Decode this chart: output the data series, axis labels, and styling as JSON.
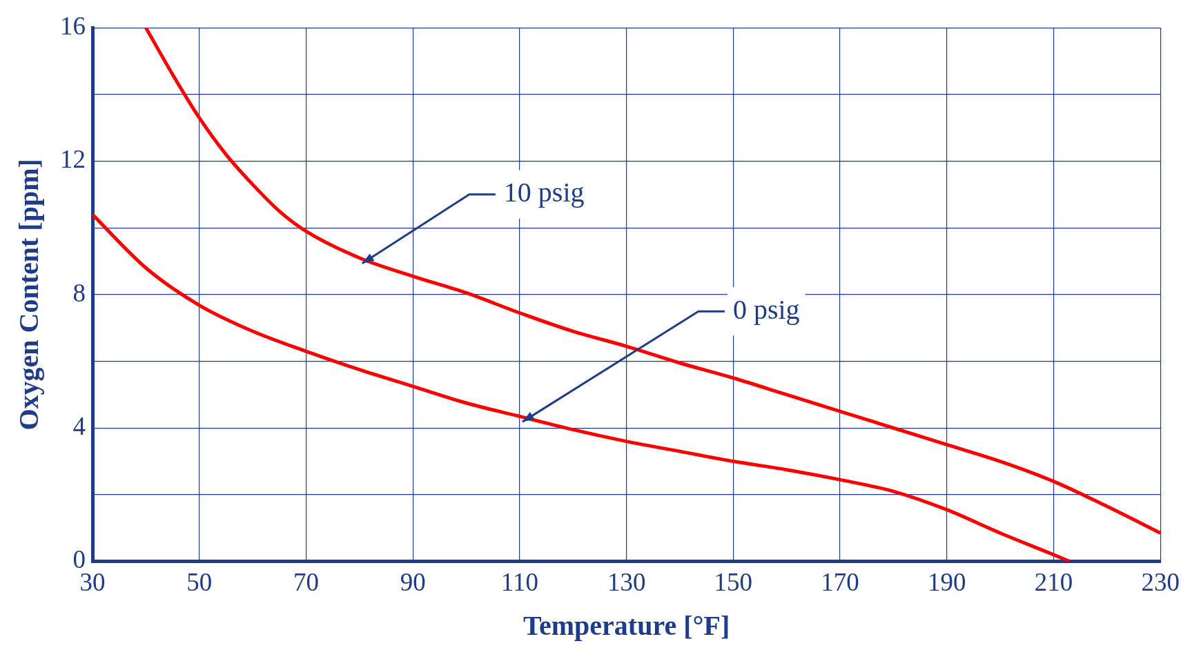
{
  "chart_data": {
    "type": "line",
    "xlabel": "Temperature [°F]",
    "ylabel": "Oxygen Content [ppm]",
    "xlim": [
      30,
      230
    ],
    "xticks": [
      30,
      50,
      70,
      90,
      110,
      130,
      150,
      170,
      190,
      210,
      230
    ],
    "ylim": [
      0,
      16
    ],
    "yticks": [
      0,
      {
        "value": 2,
        "label": null
      },
      4,
      {
        "value": 6,
        "label": null
      },
      8,
      {
        "value": 10,
        "label": null
      },
      12,
      {
        "value": 14,
        "label": null
      },
      16
    ],
    "grid": true,
    "legend": false,
    "marker": "none",
    "line_style": "solid",
    "series": [
      {
        "color": "#ff0000",
        "x": [
          40,
          45,
          50,
          55,
          60,
          65,
          70,
          80,
          90,
          100,
          110,
          120,
          130,
          140,
          150,
          160,
          170,
          180,
          190,
          200,
          210,
          220,
          230
        ],
        "values": [
          16,
          14.6,
          13.3,
          12.2,
          11.3,
          10.5,
          9.9,
          9.1,
          8.55,
          8.05,
          7.45,
          6.9,
          6.45,
          5.95,
          5.5,
          5.0,
          4.5,
          4.0,
          3.5,
          3.0,
          2.4,
          1.65,
          0.85
        ]
      },
      {
        "color": "#ff0000",
        "x": [
          30,
          40,
          50,
          60,
          70,
          80,
          90,
          100,
          110,
          120,
          130,
          140,
          150,
          160,
          170,
          180,
          190,
          200,
          210,
          213
        ],
        "values": [
          10.4,
          8.8,
          7.68,
          6.9,
          6.3,
          5.75,
          5.25,
          4.75,
          4.35,
          3.95,
          3.6,
          3.3,
          3.0,
          2.75,
          2.45,
          2.1,
          1.55,
          0.85,
          0.2,
          0
        ]
      }
    ],
    "annotations": [
      {
        "text": "10 psig",
        "x": 80,
        "y": 9.1
      },
      {
        "text": "0 psig",
        "x": 110,
        "y": 4.35
      }
    ]
  }
}
